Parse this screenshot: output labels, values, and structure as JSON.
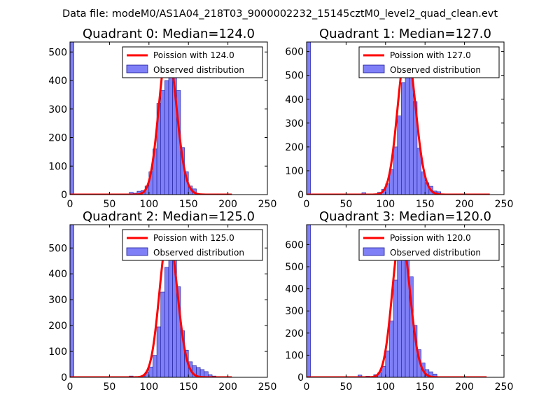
{
  "figure": {
    "suptitle": "Data file: modeM0/AS1A04_218T03_9000002232_15145cztM0_level2_quad_clean.evt"
  },
  "colors": {
    "bar_fill": "#7f7ff7",
    "bar_edge": "#1a1a99",
    "fit_line": "#ff0000",
    "axes": "#000000",
    "legend_edge": "#000000"
  },
  "chart_data": [
    {
      "type": "bar",
      "title": "Quadrant 0: Median=124.0",
      "xlim": [
        0,
        250
      ],
      "ylim": [
        0,
        535
      ],
      "xticks": [
        0,
        50,
        100,
        150,
        200,
        250
      ],
      "yticks": [
        0,
        100,
        200,
        300,
        400,
        500
      ],
      "bin_width": 5,
      "legend": [
        "Poission with 124.0",
        "Observed distribution"
      ],
      "bins": [
        [
          0,
          535
        ],
        [
          75,
          8
        ],
        [
          80,
          5
        ],
        [
          85,
          12
        ],
        [
          90,
          14
        ],
        [
          95,
          30
        ],
        [
          100,
          80
        ],
        [
          105,
          160
        ],
        [
          110,
          320
        ],
        [
          115,
          365
        ],
        [
          120,
          400
        ],
        [
          125,
          470
        ],
        [
          130,
          435
        ],
        [
          135,
          365
        ],
        [
          140,
          165
        ],
        [
          145,
          80
        ],
        [
          150,
          30
        ],
        [
          155,
          20
        ],
        [
          160,
          3
        ]
      ],
      "fit": {
        "mu": 124.0,
        "peak": 510,
        "x_range": [
          0,
          205
        ]
      }
    },
    {
      "type": "bar",
      "title": "Quadrant 1: Median=127.0",
      "xlim": [
        0,
        250
      ],
      "ylim": [
        0,
        640
      ],
      "xticks": [
        0,
        50,
        100,
        150,
        200,
        250
      ],
      "yticks": [
        0,
        100,
        200,
        300,
        400,
        500,
        600
      ],
      "bin_width": 5,
      "legend": [
        "Poission with 127.0",
        "Observed distribution"
      ],
      "bins": [
        [
          0,
          640
        ],
        [
          70,
          8
        ],
        [
          90,
          10
        ],
        [
          95,
          22
        ],
        [
          100,
          45
        ],
        [
          105,
          105
        ],
        [
          110,
          200
        ],
        [
          115,
          330
        ],
        [
          120,
          470
        ],
        [
          125,
          590
        ],
        [
          130,
          490
        ],
        [
          135,
          390
        ],
        [
          140,
          195
        ],
        [
          145,
          95
        ],
        [
          150,
          50
        ],
        [
          155,
          35
        ],
        [
          160,
          15
        ],
        [
          165,
          12
        ],
        [
          170,
          3
        ]
      ],
      "fit": {
        "mu": 127.0,
        "peak": 610,
        "x_range": [
          0,
          232
        ]
      }
    },
    {
      "type": "bar",
      "title": "Quadrant 2: Median=125.0",
      "xlim": [
        0,
        250
      ],
      "ylim": [
        0,
        590
      ],
      "xticks": [
        0,
        50,
        100,
        150,
        200,
        250
      ],
      "yticks": [
        0,
        100,
        200,
        300,
        400,
        500
      ],
      "bin_width": 5,
      "legend": [
        "Poission with 125.0",
        "Observed distribution"
      ],
      "bins": [
        [
          0,
          590
        ],
        [
          75,
          5
        ],
        [
          90,
          5
        ],
        [
          95,
          20
        ],
        [
          100,
          40
        ],
        [
          105,
          85
        ],
        [
          110,
          195
        ],
        [
          115,
          330
        ],
        [
          120,
          425
        ],
        [
          125,
          490
        ],
        [
          130,
          470
        ],
        [
          135,
          350
        ],
        [
          140,
          180
        ],
        [
          145,
          105
        ],
        [
          150,
          60
        ],
        [
          155,
          45
        ],
        [
          160,
          38
        ],
        [
          165,
          30
        ],
        [
          170,
          22
        ],
        [
          175,
          10
        ],
        [
          180,
          5
        ]
      ],
      "fit": {
        "mu": 125.0,
        "peak": 555,
        "x_range": [
          0,
          205
        ]
      }
    },
    {
      "type": "bar",
      "title": "Quadrant 3: Median=120.0",
      "xlim": [
        0,
        250
      ],
      "ylim": [
        0,
        690
      ],
      "xticks": [
        0,
        50,
        100,
        150,
        200,
        250
      ],
      "yticks": [
        0,
        100,
        200,
        300,
        400,
        500,
        600
      ],
      "bin_width": 5,
      "legend": [
        "Poission with 120.0",
        "Observed distribution"
      ],
      "bins": [
        [
          0,
          690
        ],
        [
          65,
          10
        ],
        [
          75,
          5
        ],
        [
          85,
          12
        ],
        [
          90,
          20
        ],
        [
          95,
          50
        ],
        [
          100,
          120
        ],
        [
          105,
          255
        ],
        [
          110,
          440
        ],
        [
          115,
          555
        ],
        [
          120,
          630
        ],
        [
          125,
          560
        ],
        [
          130,
          455
        ],
        [
          135,
          235
        ],
        [
          140,
          125
        ],
        [
          145,
          65
        ],
        [
          150,
          35
        ],
        [
          155,
          25
        ],
        [
          160,
          15
        ]
      ],
      "fit": {
        "mu": 120.0,
        "peak": 655,
        "x_range": [
          0,
          228
        ]
      }
    }
  ]
}
